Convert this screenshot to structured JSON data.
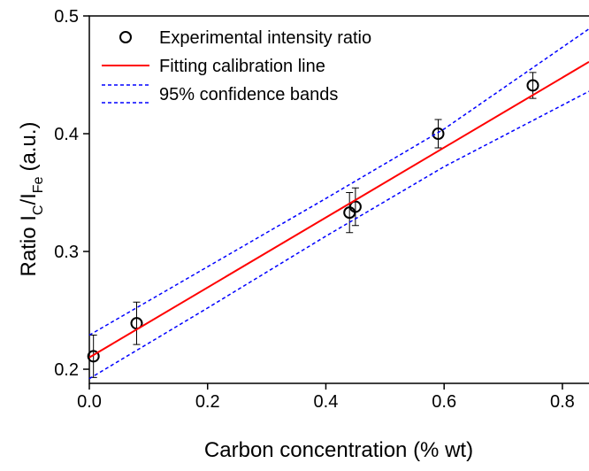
{
  "chart_data": {
    "type": "scatter",
    "xlabel": "Carbon concentration (% wt)",
    "ylabel_parts": [
      "Ratio I",
      "C",
      "/I",
      "Fe",
      "(a.u.)"
    ],
    "xlim": [
      0,
      0.845
    ],
    "ylim": [
      0.188,
      0.5
    ],
    "xticks": [
      {
        "value": 0,
        "label": "0.0"
      },
      0.2,
      0.4,
      0.6,
      0.8
    ],
    "yticks": [
      0.2,
      0.3,
      0.4,
      0.5
    ],
    "legend": "upper left",
    "series": [
      {
        "name": "Experimental intensity ratio",
        "color": "#000000",
        "marker": "open-circle",
        "x": [
          0.007,
          0.08,
          0.44,
          0.45,
          0.59,
          0.75
        ],
        "values": [
          0.211,
          0.239,
          0.333,
          0.338,
          0.4,
          0.441
        ],
        "errors": [
          0.018,
          0.018,
          0.017,
          0.016,
          0.012,
          0.011
        ]
      },
      {
        "name": "Fitting calibration line",
        "color": "#ff0000",
        "style": "solid",
        "x": [
          0,
          0.845
        ],
        "values": [
          0.21,
          0.461
        ]
      },
      {
        "name": "95% confidence bands",
        "color": "#0000ff",
        "style": "dashed",
        "x": [
          0,
          0.2,
          0.4,
          0.6,
          0.845
        ],
        "upper": [
          0.229,
          0.287,
          0.345,
          0.404,
          0.489
        ],
        "lower": [
          0.192,
          0.252,
          0.313,
          0.372,
          0.436
        ]
      }
    ]
  }
}
